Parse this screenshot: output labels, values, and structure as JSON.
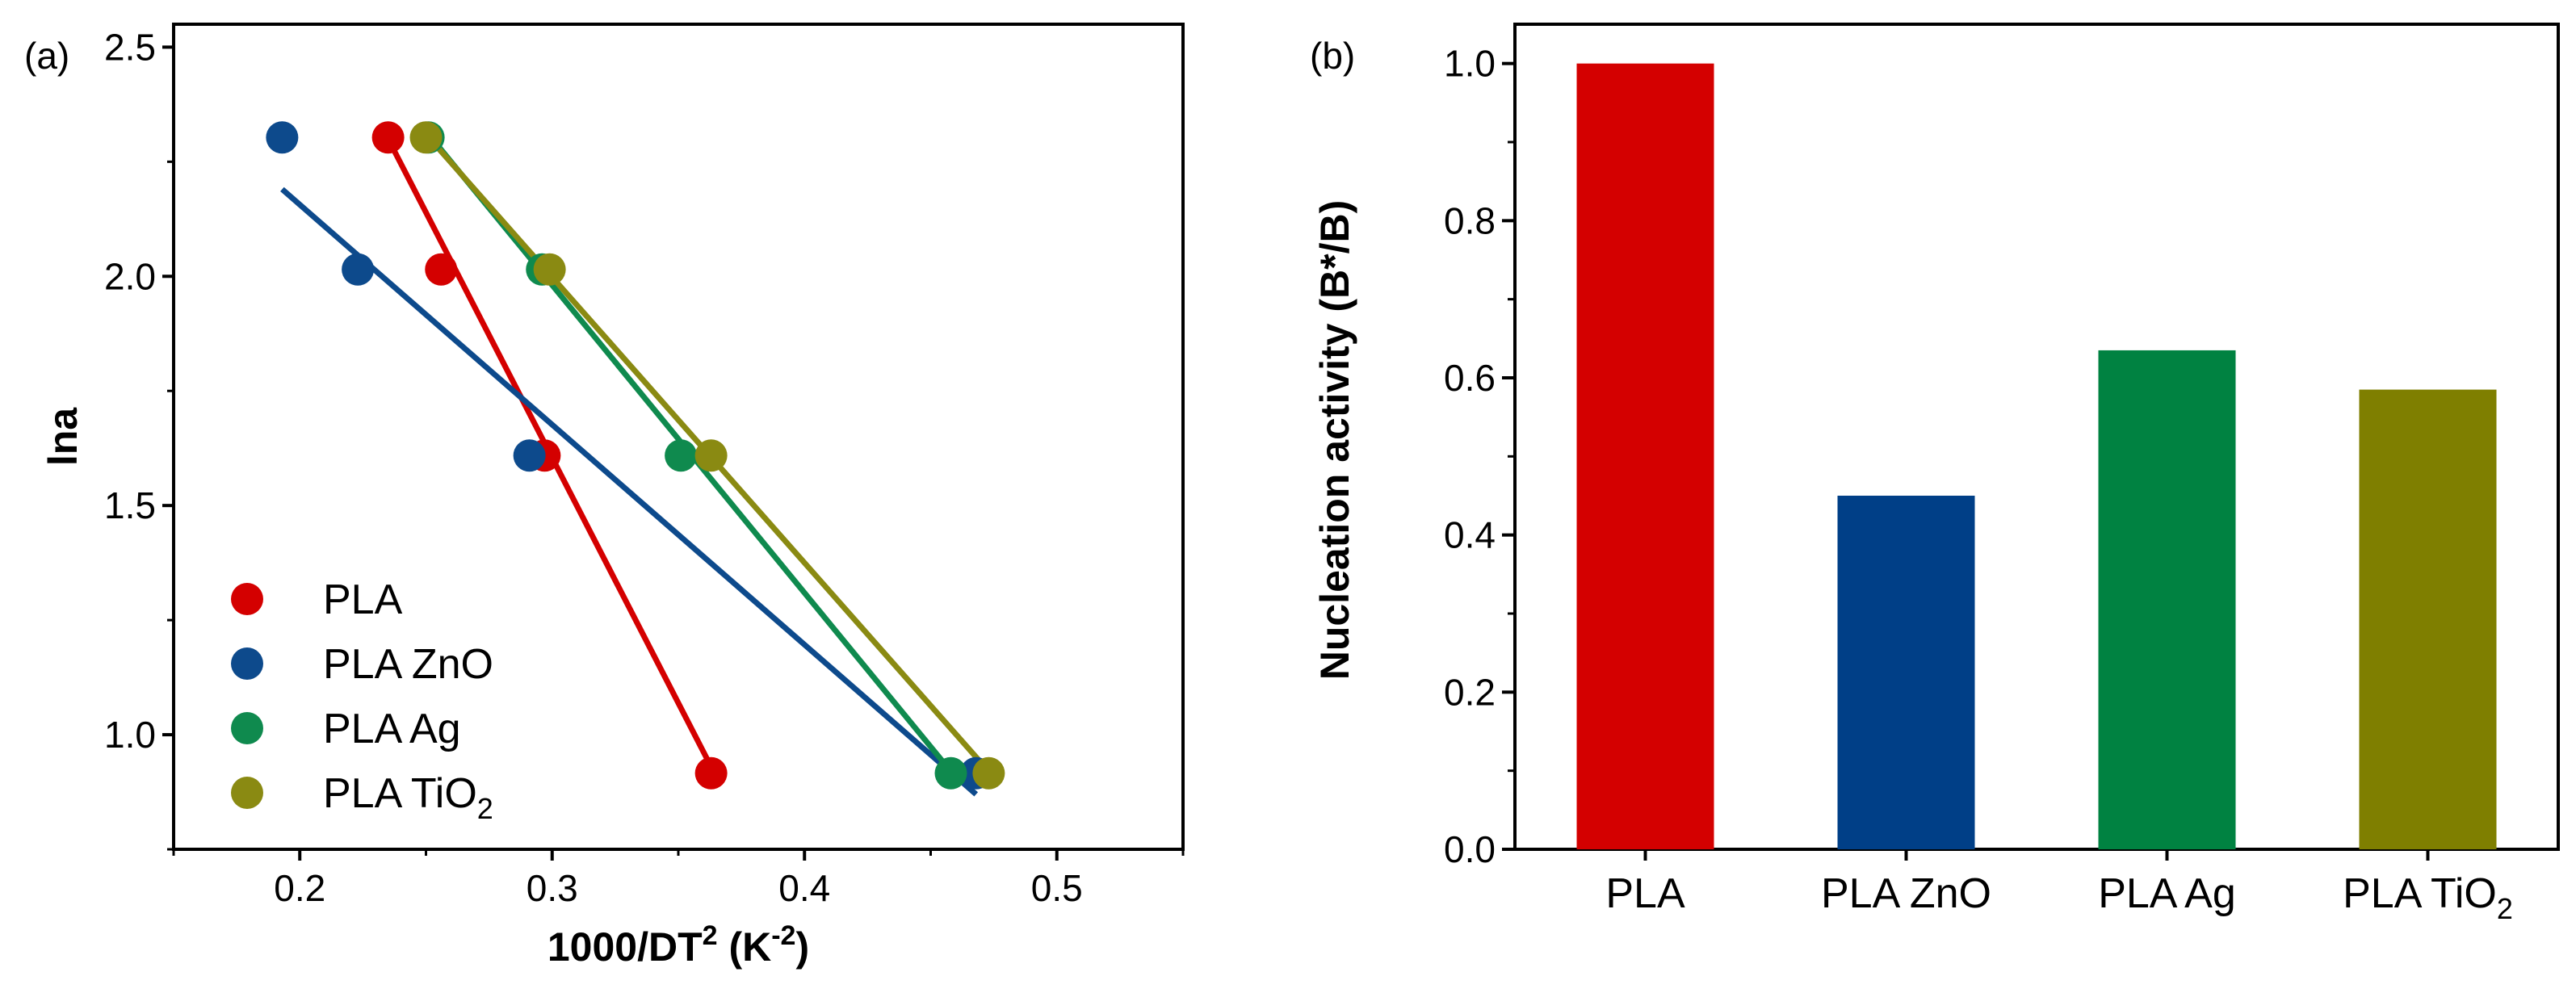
{
  "chart_data": [
    {
      "panel": "(a)",
      "type": "scatter",
      "xlabel_main": "1000/DT",
      "xlabel_sup": "2",
      "xlabel_unit_open": " (K",
      "xlabel_unit_sup": "-2",
      "xlabel_unit_close": ")",
      "ylabel": "lna",
      "xlim": [
        0.15,
        0.55
      ],
      "ylim": [
        0.75,
        2.55
      ],
      "xticks": [
        "0.2",
        "0.3",
        "0.4",
        "0.5"
      ],
      "xtick_values": [
        0.2,
        0.3,
        0.4,
        0.5
      ],
      "yticks": [
        "1.0",
        "1.5",
        "2.0",
        "2.5"
      ],
      "ytick_values": [
        1.0,
        1.5,
        2.0,
        2.5
      ],
      "series": [
        {
          "name": "PLA",
          "legend_main": "PLA",
          "legend_sub": "",
          "color": "#d40000",
          "points": [
            [
              0.235,
              2.303
            ],
            [
              0.256,
              2.015
            ],
            [
              0.297,
              1.609
            ],
            [
              0.363,
              0.916
            ]
          ],
          "fit": [
            [
              0.235,
              2.3
            ],
            [
              0.363,
              0.93
            ]
          ]
        },
        {
          "name": "PLA ZnO",
          "legend_main": "PLA ZnO",
          "legend_sub": "",
          "color": "#0d4a8c",
          "points": [
            [
              0.193,
              2.303
            ],
            [
              0.223,
              2.015
            ],
            [
              0.291,
              1.609
            ],
            [
              0.468,
              0.916
            ]
          ],
          "fit": [
            [
              0.193,
              2.19
            ],
            [
              0.468,
              0.87
            ]
          ]
        },
        {
          "name": "PLA Ag",
          "legend_main": "PLA Ag",
          "legend_sub": "",
          "color": "#0f8a4e",
          "points": [
            [
              0.251,
              2.303
            ],
            [
              0.296,
              2.015
            ],
            [
              0.351,
              1.609
            ],
            [
              0.458,
              0.916
            ]
          ],
          "fit": [
            [
              0.251,
              2.31
            ],
            [
              0.458,
              0.92
            ]
          ]
        },
        {
          "name": "PLA TiO2",
          "legend_main": "PLA TiO",
          "legend_sub": "2",
          "color": "#8a8a12",
          "points": [
            [
              0.25,
              2.303
            ],
            [
              0.299,
              2.015
            ],
            [
              0.363,
              1.609
            ],
            [
              0.473,
              0.916
            ]
          ],
          "fit": [
            [
              0.25,
              2.31
            ],
            [
              0.473,
              0.92
            ]
          ]
        }
      ]
    },
    {
      "panel": "(b)",
      "type": "bar",
      "ylabel": "Nucleation activity (B*/B)",
      "ylim": [
        0,
        1.05
      ],
      "yticks": [
        "0.0",
        "0.2",
        "0.4",
        "0.6",
        "0.8",
        "1.0"
      ],
      "ytick_values": [
        0.0,
        0.2,
        0.4,
        0.6,
        0.8,
        1.0
      ],
      "categories": [
        {
          "main": "PLA",
          "sub": ""
        },
        {
          "main": "PLA ZnO",
          "sub": ""
        },
        {
          "main": "PLA Ag",
          "sub": ""
        },
        {
          "main": "PLA TiO",
          "sub": "2"
        }
      ],
      "values": [
        1.0,
        0.45,
        0.635,
        0.585
      ],
      "colors": [
        "#d40000",
        "#003f87",
        "#008241",
        "#7f7f00"
      ]
    }
  ]
}
